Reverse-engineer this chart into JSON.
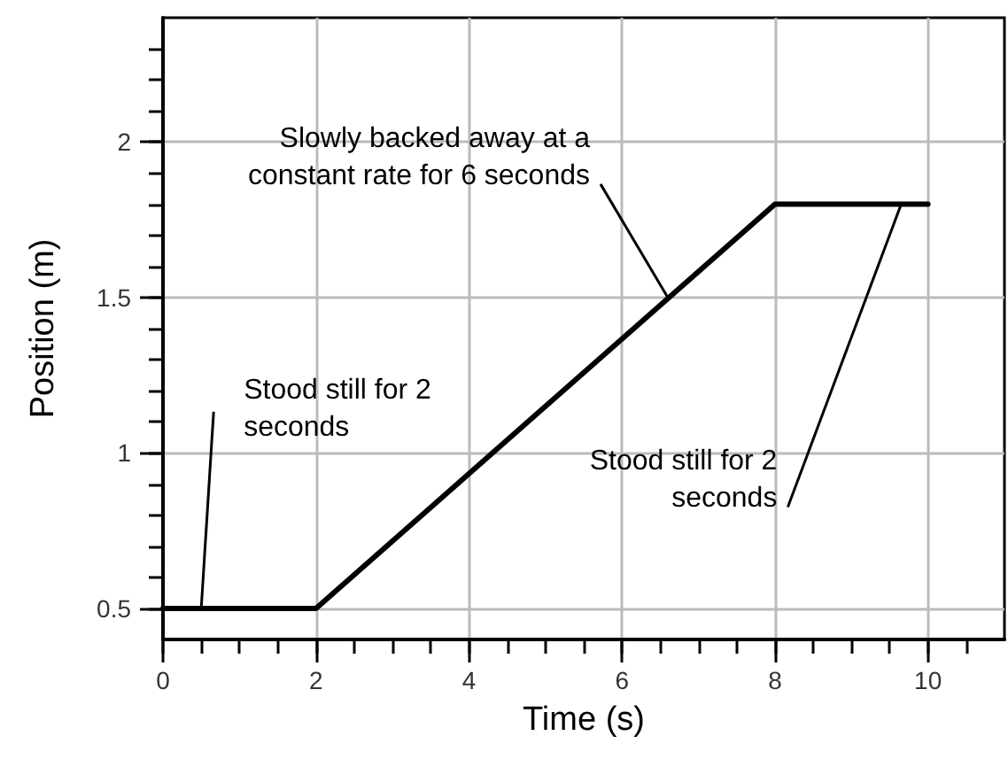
{
  "chart_data": {
    "type": "line",
    "xlabel": "Time (s)",
    "ylabel": "Position (m)",
    "x": [
      0,
      2,
      8,
      10
    ],
    "series": [
      {
        "color": "#000000",
        "values": [
          0.5,
          0.5,
          1.8,
          1.8
        ]
      }
    ],
    "xlim": [
      0,
      11
    ],
    "ylim": [
      0.4,
      2.4
    ],
    "xticks": [
      0,
      {
        "value": 0.5,
        "label": null
      },
      {
        "value": 1,
        "label": null
      },
      {
        "value": 1.5,
        "label": null
      },
      2,
      {
        "value": 2.5,
        "label": null
      },
      {
        "value": 3,
        "label": null
      },
      {
        "value": 3.5,
        "label": null
      },
      4,
      {
        "value": 4.5,
        "label": null
      },
      {
        "value": 5,
        "label": null
      },
      {
        "value": 5.5,
        "label": null
      },
      6,
      {
        "value": 6.5,
        "label": null
      },
      {
        "value": 7,
        "label": null
      },
      {
        "value": 7.5,
        "label": null
      },
      8,
      {
        "value": 8.5,
        "label": null
      },
      {
        "value": 9,
        "label": null
      },
      {
        "value": 9.5,
        "label": null
      },
      10,
      {
        "value": 10.5,
        "label": null
      }
    ],
    "yticks": [
      {
        "value": 0.5,
        "label": "0.5"
      },
      {
        "value": 0.6,
        "label": null
      },
      {
        "value": 0.7,
        "label": null
      },
      {
        "value": 0.8,
        "label": null
      },
      {
        "value": 0.9,
        "label": null
      },
      1,
      {
        "value": 1.1,
        "label": null
      },
      {
        "value": 1.2,
        "label": null
      },
      {
        "value": 1.3,
        "label": null
      },
      {
        "value": 1.4,
        "label": null
      },
      1.5,
      {
        "value": 1.6,
        "label": null
      },
      {
        "value": 1.7,
        "label": null
      },
      {
        "value": 1.8,
        "label": null
      },
      {
        "value": 1.9,
        "label": null
      },
      2,
      {
        "value": 2.1,
        "label": null
      },
      {
        "value": 2.2,
        "label": null
      },
      {
        "value": 2.3,
        "label": null
      }
    ],
    "grid": true,
    "marker": "none",
    "line_style": "solid",
    "annotations": [
      {
        "text": "Stood still for 2 seconds",
        "x": 0.5,
        "y": 0.5
      },
      {
        "text": "Slowly backed away at a constant rate for 6 seconds",
        "x": 6.6,
        "y": 1.5
      },
      {
        "text": "Stood still for 2 seconds",
        "x": 9.65,
        "y": 1.8
      }
    ]
  }
}
